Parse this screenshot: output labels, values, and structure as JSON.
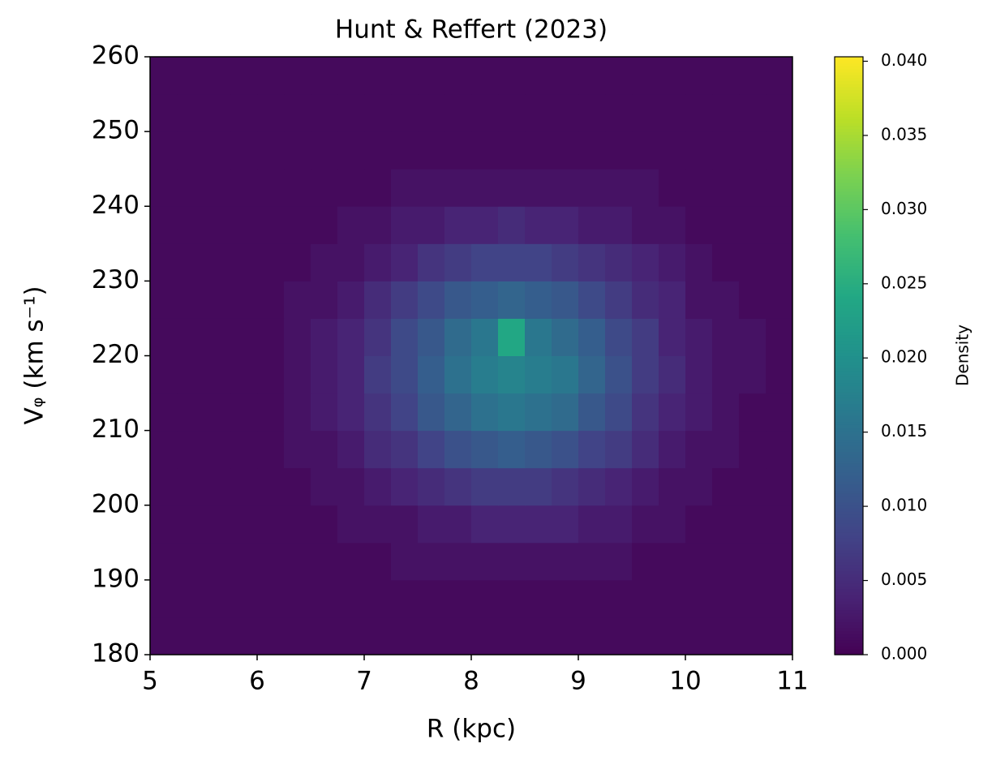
{
  "chart_data": {
    "type": "hist2d",
    "title": "Hunt & Reffert (2023)",
    "xlabel": "R (kpc)",
    "ylabel": "Vᵩ (km s⁻¹)",
    "colorbar_label": "Density",
    "xlim": [
      5,
      11
    ],
    "ylim": [
      180,
      260
    ],
    "xticks": [
      5,
      6,
      7,
      8,
      9,
      10,
      11
    ],
    "yticks": [
      180,
      190,
      200,
      210,
      220,
      230,
      240,
      250,
      260
    ],
    "clim": [
      0,
      0.0403
    ],
    "cticks": [
      {
        "value": 0,
        "label": "0.000"
      },
      {
        "value": 0.005,
        "label": "0.005"
      },
      {
        "value": 0.01,
        "label": "0.010"
      },
      {
        "value": 0.015,
        "label": "0.015"
      },
      {
        "value": 0.02,
        "label": "0.020"
      },
      {
        "value": 0.025,
        "label": "0.025"
      },
      {
        "value": 0.03,
        "label": "0.030"
      },
      {
        "value": 0.035,
        "label": "0.035"
      },
      {
        "value": 0.04,
        "label": "0.040"
      }
    ],
    "xbins": [
      5,
      5.25,
      5.5,
      5.75,
      6,
      6.25,
      6.5,
      6.75,
      7,
      7.25,
      7.5,
      7.75,
      8,
      8.25,
      8.5,
      8.75,
      9,
      9.25,
      9.5,
      9.75,
      10,
      10.25,
      10.5,
      10.75,
      11
    ],
    "ybins": [
      180,
      185,
      190,
      195,
      200,
      205,
      210,
      215,
      220,
      225,
      230,
      235,
      240,
      245,
      250,
      255,
      260
    ],
    "values": [
      [
        0.001,
        0.001,
        0.001,
        0.001,
        0.001,
        0.001,
        0.001,
        0.001,
        0.001,
        0.001,
        0.001,
        0.001,
        0.001,
        0.001,
        0.001,
        0.001,
        0.001,
        0.001,
        0.001,
        0.001,
        0.001,
        0.001,
        0.001,
        0.001
      ],
      [
        0.001,
        0.001,
        0.001,
        0.001,
        0.001,
        0.001,
        0.001,
        0.001,
        0.001,
        0.001,
        0.001,
        0.001,
        0.001,
        0.001,
        0.001,
        0.001,
        0.001,
        0.001,
        0.001,
        0.001,
        0.001,
        0.001,
        0.001,
        0.001
      ],
      [
        0.001,
        0.001,
        0.001,
        0.001,
        0.001,
        0.001,
        0.001,
        0.001,
        0.001,
        0.002,
        0.002,
        0.002,
        0.002,
        0.002,
        0.002,
        0.002,
        0.002,
        0.002,
        0.001,
        0.001,
        0.001,
        0.001,
        0.001,
        0.001
      ],
      [
        0.001,
        0.001,
        0.001,
        0.001,
        0.001,
        0.001,
        0.001,
        0.002,
        0.002,
        0.002,
        0.003,
        0.003,
        0.004,
        0.004,
        0.004,
        0.004,
        0.003,
        0.003,
        0.002,
        0.002,
        0.001,
        0.001,
        0.001,
        0.001
      ],
      [
        0.001,
        0.001,
        0.001,
        0.001,
        0.001,
        0.001,
        0.002,
        0.002,
        0.003,
        0.004,
        0.005,
        0.006,
        0.007,
        0.007,
        0.007,
        0.006,
        0.005,
        0.004,
        0.003,
        0.002,
        0.002,
        0.001,
        0.001,
        0.001
      ],
      [
        0.001,
        0.001,
        0.001,
        0.001,
        0.001,
        0.002,
        0.002,
        0.003,
        0.005,
        0.006,
        0.008,
        0.01,
        0.011,
        0.012,
        0.011,
        0.01,
        0.008,
        0.007,
        0.005,
        0.003,
        0.002,
        0.002,
        0.001,
        0.001
      ],
      [
        0.001,
        0.001,
        0.001,
        0.001,
        0.001,
        0.002,
        0.003,
        0.004,
        0.006,
        0.008,
        0.011,
        0.013,
        0.015,
        0.016,
        0.015,
        0.014,
        0.011,
        0.009,
        0.006,
        0.004,
        0.003,
        0.002,
        0.001,
        0.001
      ],
      [
        0.001,
        0.001,
        0.001,
        0.001,
        0.001,
        0.002,
        0.003,
        0.004,
        0.007,
        0.009,
        0.012,
        0.015,
        0.017,
        0.018,
        0.017,
        0.016,
        0.013,
        0.01,
        0.007,
        0.005,
        0.003,
        0.002,
        0.002,
        0.001
      ],
      [
        0.001,
        0.001,
        0.001,
        0.001,
        0.001,
        0.002,
        0.003,
        0.004,
        0.006,
        0.009,
        0.011,
        0.014,
        0.016,
        0.024,
        0.016,
        0.014,
        0.012,
        0.009,
        0.007,
        0.004,
        0.003,
        0.002,
        0.002,
        0.001
      ],
      [
        0.001,
        0.001,
        0.001,
        0.001,
        0.001,
        0.002,
        0.002,
        0.003,
        0.005,
        0.007,
        0.009,
        0.011,
        0.012,
        0.013,
        0.012,
        0.011,
        0.009,
        0.007,
        0.005,
        0.004,
        0.002,
        0.002,
        0.001,
        0.001
      ],
      [
        0.001,
        0.001,
        0.001,
        0.001,
        0.001,
        0.001,
        0.002,
        0.002,
        0.003,
        0.004,
        0.006,
        0.007,
        0.008,
        0.008,
        0.008,
        0.007,
        0.006,
        0.005,
        0.004,
        0.003,
        0.002,
        0.001,
        0.001,
        0.001
      ],
      [
        0.001,
        0.001,
        0.001,
        0.001,
        0.001,
        0.001,
        0.001,
        0.002,
        0.002,
        0.003,
        0.003,
        0.004,
        0.004,
        0.005,
        0.004,
        0.004,
        0.003,
        0.003,
        0.002,
        0.002,
        0.001,
        0.001,
        0.001,
        0.001
      ],
      [
        0.001,
        0.001,
        0.001,
        0.001,
        0.001,
        0.001,
        0.001,
        0.001,
        0.001,
        0.002,
        0.002,
        0.002,
        0.002,
        0.002,
        0.002,
        0.002,
        0.002,
        0.002,
        0.002,
        0.001,
        0.001,
        0.001,
        0.001,
        0.001
      ],
      [
        0.001,
        0.001,
        0.001,
        0.001,
        0.001,
        0.001,
        0.001,
        0.001,
        0.001,
        0.001,
        0.001,
        0.001,
        0.001,
        0.001,
        0.001,
        0.001,
        0.001,
        0.001,
        0.001,
        0.001,
        0.001,
        0.001,
        0.001,
        0.001
      ],
      [
        0.001,
        0.001,
        0.001,
        0.001,
        0.001,
        0.001,
        0.001,
        0.001,
        0.001,
        0.001,
        0.001,
        0.001,
        0.001,
        0.001,
        0.001,
        0.001,
        0.001,
        0.001,
        0.001,
        0.001,
        0.001,
        0.001,
        0.001,
        0.001
      ],
      [
        0.001,
        0.001,
        0.001,
        0.001,
        0.001,
        0.001,
        0.001,
        0.001,
        0.001,
        0.001,
        0.001,
        0.001,
        0.001,
        0.001,
        0.001,
        0.001,
        0.001,
        0.001,
        0.001,
        0.001,
        0.001,
        0.001,
        0.001,
        0.001
      ]
    ]
  }
}
